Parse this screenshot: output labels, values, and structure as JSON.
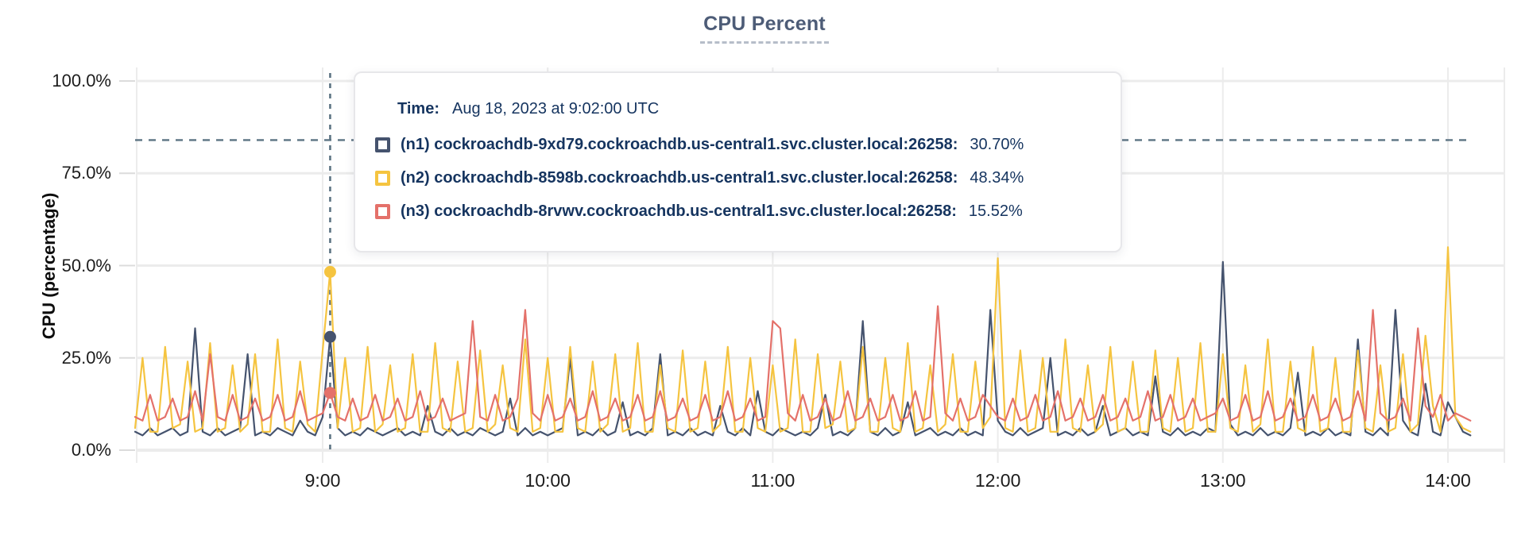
{
  "page": {
    "title": "CPU Percent"
  },
  "colors": {
    "n1": "#45536e",
    "n2": "#f5c440",
    "n3": "#e4716a",
    "grid": "#ececec",
    "tick_stub": "#dcdcdc",
    "dashed_guides": "#5c7383",
    "axis_text": "#1c1c1c",
    "tooltip_text": "#15345f",
    "title_text": "#4d5c77"
  },
  "tooltip": {
    "time_label": "Time:",
    "time_value": "Aug 18, 2023 at 9:02:00 UTC",
    "rows": [
      {
        "label": "(n1) cockroachdb-9xd79.cockroachdb.us-central1.svc.cluster.local:26258:",
        "value": "30.70%",
        "color": "#45536e"
      },
      {
        "label": "(n2) cockroachdb-8598b.cockroachdb.us-central1.svc.cluster.local:26258:",
        "value": "48.34%",
        "color": "#f5c440"
      },
      {
        "label": "(n3) cockroachdb-8rvwv.cockroachdb.us-central1.svc.cluster.local:26258:",
        "value": "15.52%",
        "color": "#e4716a"
      }
    ]
  },
  "chart_data": {
    "type": "line",
    "title": "CPU Percent",
    "xlabel": "",
    "ylabel": "CPU (percentage)",
    "ylim": [
      0,
      100
    ],
    "grid": true,
    "legend_position": "tooltip",
    "threshold_percent": 84,
    "y_ticks": [
      {
        "value": 0,
        "label": "0.0%"
      },
      {
        "value": 25,
        "label": "25.0%"
      },
      {
        "value": 50,
        "label": "50.0%"
      },
      {
        "value": 75,
        "label": "75.0%"
      },
      {
        "value": 100,
        "label": "100.0%"
      }
    ],
    "x_ticks": [
      {
        "minute": 540,
        "label": "9:00"
      },
      {
        "minute": 600,
        "label": "10:00"
      },
      {
        "minute": 660,
        "label": "11:00"
      },
      {
        "minute": 720,
        "label": "12:00"
      },
      {
        "minute": 780,
        "label": "13:00"
      },
      {
        "minute": 840,
        "label": "14:00"
      }
    ],
    "x_start_minute": 490,
    "x_step_minutes": 2,
    "hover": {
      "index": 26,
      "minute": 542,
      "time_value": "Aug 18, 2023 at 9:02:00 UTC"
    },
    "series": [
      {
        "id": "n1",
        "name": "(n1) cockroachdb-9xd79.cockroachdb.us-central1.svc.cluster.local:26258",
        "color": "#45536e",
        "hover_value": 30.7,
        "values": [
          5,
          4,
          6,
          4,
          5,
          6,
          4,
          5,
          33,
          5,
          4,
          6,
          4,
          5,
          6,
          26,
          4,
          5,
          4,
          6,
          5,
          4,
          8,
          5,
          4,
          9,
          30.7,
          6,
          4,
          5,
          4,
          6,
          5,
          4,
          5,
          6,
          4,
          5,
          4,
          12,
          5,
          4,
          6,
          4,
          5,
          4,
          6,
          5,
          4,
          5,
          14,
          4,
          6,
          4,
          5,
          4,
          5,
          6,
          25,
          4,
          5,
          4,
          6,
          4,
          5,
          13,
          4,
          5,
          4,
          6,
          26,
          4,
          5,
          4,
          6,
          4,
          5,
          4,
          12,
          5,
          4,
          6,
          4,
          16,
          5,
          4,
          6,
          5,
          4,
          5,
          4,
          6,
          15,
          4,
          5,
          4,
          6,
          35,
          5,
          4,
          6,
          4,
          5,
          13,
          4,
          5,
          6,
          4,
          5,
          4,
          6,
          4,
          5,
          4,
          38,
          8,
          5,
          4,
          6,
          4,
          5,
          6,
          25,
          4,
          5,
          4,
          6,
          4,
          5,
          12,
          4,
          5,
          6,
          4,
          5,
          4,
          20,
          5,
          4,
          6,
          4,
          5,
          4,
          6,
          5,
          51,
          7,
          4,
          5,
          4,
          6,
          4,
          5,
          4,
          6,
          21,
          4,
          5,
          4,
          6,
          4,
          5,
          4,
          30,
          5,
          4,
          6,
          4,
          38,
          8,
          5,
          4,
          18,
          5,
          4,
          13,
          9,
          5,
          4
        ]
      },
      {
        "id": "n2",
        "name": "(n2) cockroachdb-8598b.cockroachdb.us-central1.svc.cluster.local:26258",
        "color": "#f5c440",
        "hover_value": 48.34,
        "values": [
          6,
          25,
          5,
          5,
          28,
          6,
          7,
          24,
          5,
          6,
          29,
          5,
          6,
          23,
          5,
          7,
          26,
          5,
          5,
          30,
          6,
          5,
          24,
          7,
          5,
          27,
          48.3,
          6,
          25,
          5,
          6,
          28,
          5,
          7,
          23,
          5,
          6,
          26,
          5,
          5,
          29,
          6,
          5,
          24,
          5,
          6,
          27,
          5,
          7,
          23,
          6,
          5,
          30,
          5,
          6,
          25,
          5,
          5,
          28,
          6,
          5,
          24,
          5,
          7,
          26,
          5,
          6,
          29,
          5,
          5,
          23,
          6,
          5,
          27,
          5,
          6,
          24,
          5,
          7,
          28,
          5,
          5,
          25,
          6,
          5,
          23,
          5,
          6,
          30,
          5,
          5,
          26,
          6,
          7,
          24,
          5,
          6,
          28,
          5,
          5,
          25,
          6,
          5,
          29,
          5,
          6,
          23,
          5,
          7,
          26,
          5,
          5,
          24,
          6,
          9,
          52,
          6,
          5,
          27,
          5,
          6,
          25,
          5,
          5,
          30,
          6,
          5,
          23,
          5,
          7,
          28,
          5,
          6,
          24,
          5,
          5,
          27,
          6,
          5,
          25,
          5,
          6,
          29,
          5,
          5,
          26,
          6,
          5,
          23,
          5,
          7,
          30,
          5,
          5,
          24,
          6,
          5,
          28,
          5,
          6,
          25,
          5,
          5,
          27,
          6,
          5,
          23,
          5,
          6,
          26,
          5,
          7,
          31,
          12,
          5,
          55,
          9,
          6,
          5
        ]
      },
      {
        "id": "n3",
        "name": "(n3) cockroachdb-8rvwv.cockroachdb.us-central1.svc.cluster.local:26258",
        "color": "#e4716a",
        "hover_value": 15.52,
        "values": [
          9,
          8,
          15,
          8,
          9,
          14,
          8,
          9,
          16,
          8,
          26,
          9,
          8,
          15,
          8,
          9,
          14,
          8,
          9,
          15,
          8,
          9,
          16,
          8,
          9,
          10,
          15.5,
          9,
          8,
          14,
          8,
          9,
          15,
          8,
          9,
          14,
          8,
          9,
          16,
          8,
          9,
          14,
          8,
          9,
          10,
          35,
          9,
          8,
          15,
          8,
          9,
          14,
          38,
          10,
          8,
          15,
          8,
          9,
          14,
          8,
          9,
          16,
          8,
          9,
          14,
          8,
          9,
          15,
          8,
          9,
          16,
          8,
          9,
          14,
          8,
          9,
          15,
          8,
          9,
          16,
          8,
          9,
          14,
          8,
          9,
          35,
          33,
          10,
          8,
          15,
          8,
          9,
          14,
          8,
          9,
          16,
          8,
          9,
          14,
          8,
          9,
          15,
          8,
          9,
          16,
          8,
          9,
          39,
          10,
          8,
          14,
          8,
          9,
          15,
          12,
          9,
          8,
          14,
          8,
          9,
          15,
          8,
          9,
          16,
          8,
          9,
          14,
          8,
          9,
          15,
          8,
          9,
          14,
          8,
          9,
          16,
          8,
          9,
          15,
          8,
          9,
          14,
          8,
          9,
          10,
          14,
          8,
          9,
          15,
          8,
          9,
          16,
          8,
          9,
          14,
          8,
          9,
          15,
          8,
          9,
          14,
          8,
          9,
          16,
          8,
          38,
          10,
          8,
          9,
          14,
          8,
          33,
          12,
          9,
          15,
          8,
          10,
          9,
          8
        ]
      }
    ]
  }
}
